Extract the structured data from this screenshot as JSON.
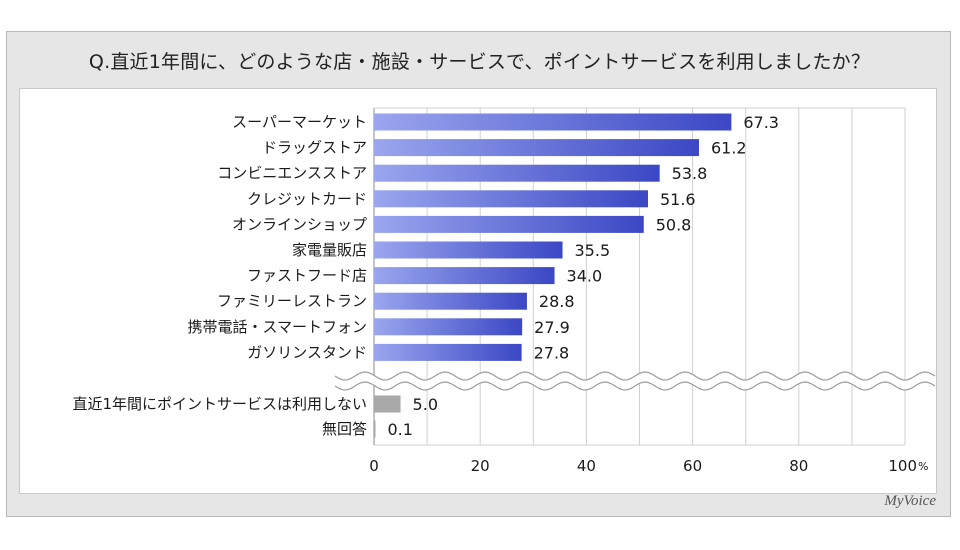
{
  "title": "Q.直近1年間に、どのような店・施設・サービスで、ポイントサービスを利用しましたか？",
  "brand": "MyVoice",
  "colors": {
    "bar_start": "#9aa6ee",
    "bar_end": "#3b47c4",
    "bar_other": "#a9a9a9",
    "grid": "#d0d0d0"
  },
  "chart_data": {
    "type": "bar",
    "orientation": "horizontal",
    "categories": [
      "スーパーマーケット",
      "ドラッグストア",
      "コンビニエンスストア",
      "クレジットカード",
      "オンラインショップ",
      "家電量販店",
      "ファストフード店",
      "ファミリーレストラン",
      "携帯電話・スマートフォン",
      "ガソリンスタンド",
      "直近1年間にポイントサービスは利用しない",
      "無回答"
    ],
    "values": [
      67.3,
      61.2,
      53.8,
      51.6,
      50.8,
      35.5,
      34.0,
      28.8,
      27.9,
      27.8,
      5.0,
      0.1
    ],
    "value_labels": [
      "67.3",
      "61.2",
      "53.8",
      "51.6",
      "50.8",
      "35.5",
      "34.0",
      "28.8",
      "27.9",
      "27.8",
      "5.0",
      "0.1"
    ],
    "xlim": [
      0,
      100
    ],
    "xticks": [
      "0",
      "20",
      "40",
      "60",
      "80",
      "100"
    ],
    "xunit": "%",
    "grid": true,
    "break_after_index": 9
  }
}
